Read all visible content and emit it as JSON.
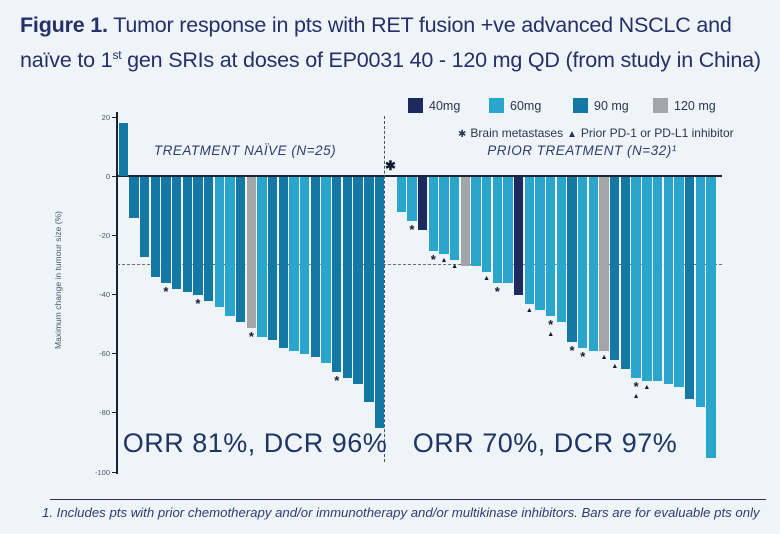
{
  "title": {
    "bold": "Figure 1.",
    "line1_rest": " Tumor response in pts with RET fusion +ve advanced NSCLC and",
    "line2_pre": "naïve to 1",
    "line2_sup": "st",
    "line2_rest": " gen SRIs at doses of EP0031 40 - 120 mg QD (from study in China)"
  },
  "legend": {
    "doses": [
      {
        "label": "40mg",
        "color": "#1e2a5e"
      },
      {
        "label": "60mg",
        "color": "#2aa5cc"
      },
      {
        "label": "90 mg",
        "color": "#1478a4"
      },
      {
        "label": "120 mg",
        "color": "#a2a6a9"
      }
    ],
    "markers": [
      {
        "symbol": "✱",
        "label": "Brain metastases"
      },
      {
        "symbol": "▲",
        "label": "Prior PD-1 or PD-L1 inhibitor"
      }
    ]
  },
  "chart_data": {
    "type": "bar",
    "subtype": "waterfall",
    "ylabel": "Maximum change in tumour size (%)",
    "yticks": [
      20,
      0,
      -20,
      -40,
      -60,
      -80,
      -100
    ],
    "ylim": [
      -100,
      20
    ],
    "reference_line": -30,
    "grid": false,
    "sections": [
      {
        "label": "TREATMENT NAÏVE (N=25)",
        "summary": "ORR 81%, DCR 96%",
        "bars": [
          {
            "value": 18,
            "dose": "90 mg",
            "marks": []
          },
          {
            "value": -14,
            "dose": "90 mg",
            "marks": []
          },
          {
            "value": -27,
            "dose": "90 mg",
            "marks": []
          },
          {
            "value": -34,
            "dose": "90 mg",
            "marks": []
          },
          {
            "value": -36,
            "dose": "90 mg",
            "marks": [
              "brain"
            ]
          },
          {
            "value": -38,
            "dose": "90 mg",
            "marks": []
          },
          {
            "value": -39,
            "dose": "90 mg",
            "marks": []
          },
          {
            "value": -40,
            "dose": "90 mg",
            "marks": [
              "brain"
            ]
          },
          {
            "value": -42,
            "dose": "90 mg",
            "marks": []
          },
          {
            "value": -44,
            "dose": "60mg",
            "marks": []
          },
          {
            "value": -47,
            "dose": "60mg",
            "marks": []
          },
          {
            "value": -49,
            "dose": "90 mg",
            "marks": []
          },
          {
            "value": -51,
            "dose": "120 mg",
            "marks": [
              "brain"
            ]
          },
          {
            "value": -54,
            "dose": "60mg",
            "marks": []
          },
          {
            "value": -55,
            "dose": "90 mg",
            "marks": []
          },
          {
            "value": -58,
            "dose": "90 mg",
            "marks": []
          },
          {
            "value": -59,
            "dose": "60mg",
            "marks": []
          },
          {
            "value": -60,
            "dose": "60mg",
            "marks": []
          },
          {
            "value": -61,
            "dose": "90 mg",
            "marks": []
          },
          {
            "value": -63,
            "dose": "60mg",
            "marks": []
          },
          {
            "value": -66,
            "dose": "90 mg",
            "marks": [
              "brain"
            ]
          },
          {
            "value": -68,
            "dose": "90 mg",
            "marks": []
          },
          {
            "value": -70,
            "dose": "90 mg",
            "marks": []
          },
          {
            "value": -76,
            "dose": "90 mg",
            "marks": []
          },
          {
            "value": -85,
            "dose": "90 mg",
            "marks": []
          }
        ]
      },
      {
        "label": "PRIOR TREATMENT (N=32)¹",
        "summary": "ORR 70%, DCR 97%",
        "floating_mark": "✱",
        "bars": [
          {
            "value": -12,
            "dose": "60mg",
            "marks": []
          },
          {
            "value": -15,
            "dose": "60mg",
            "marks": [
              "brain"
            ]
          },
          {
            "value": -18,
            "dose": "40mg",
            "marks": []
          },
          {
            "value": -25,
            "dose": "60mg",
            "marks": [
              "brain"
            ]
          },
          {
            "value": -26,
            "dose": "60mg",
            "marks": [
              "pd1"
            ]
          },
          {
            "value": -28,
            "dose": "60mg",
            "marks": [
              "pd1"
            ]
          },
          {
            "value": -30,
            "dose": "120 mg",
            "marks": []
          },
          {
            "value": -30,
            "dose": "60mg",
            "marks": []
          },
          {
            "value": -32,
            "dose": "60mg",
            "marks": [
              "pd1"
            ]
          },
          {
            "value": -36,
            "dose": "60mg",
            "marks": [
              "brain"
            ]
          },
          {
            "value": -36,
            "dose": "60mg",
            "marks": []
          },
          {
            "value": -40,
            "dose": "40mg",
            "marks": []
          },
          {
            "value": -43,
            "dose": "60mg",
            "marks": [
              "pd1"
            ]
          },
          {
            "value": -45,
            "dose": "60mg",
            "marks": []
          },
          {
            "value": -47,
            "dose": "60mg",
            "marks": [
              "brain",
              "pd1"
            ]
          },
          {
            "value": -49,
            "dose": "60mg",
            "marks": []
          },
          {
            "value": -56,
            "dose": "90 mg",
            "marks": [
              "brain"
            ]
          },
          {
            "value": -58,
            "dose": "60mg",
            "marks": [
              "brain"
            ]
          },
          {
            "value": -59,
            "dose": "60mg",
            "marks": []
          },
          {
            "value": -59,
            "dose": "120 mg",
            "marks": [
              "pd1"
            ]
          },
          {
            "value": -62,
            "dose": "90 mg",
            "marks": [
              "pd1"
            ]
          },
          {
            "value": -65,
            "dose": "90 mg",
            "marks": []
          },
          {
            "value": -68,
            "dose": "60mg",
            "marks": [
              "brain",
              "pd1"
            ]
          },
          {
            "value": -69,
            "dose": "60mg",
            "marks": [
              "pd1"
            ]
          },
          {
            "value": -69,
            "dose": "60mg",
            "marks": []
          },
          {
            "value": -70,
            "dose": "60mg",
            "marks": []
          },
          {
            "value": -71,
            "dose": "60mg",
            "marks": []
          },
          {
            "value": -75,
            "dose": "90 mg",
            "marks": []
          },
          {
            "value": -78,
            "dose": "60mg",
            "marks": []
          },
          {
            "value": -95,
            "dose": "60mg",
            "marks": []
          }
        ]
      }
    ]
  },
  "footnote": "1. Includes pts with prior chemotherapy and/or immunotherapy and/or multikinase inhibitors. Bars are for evaluable pts only"
}
